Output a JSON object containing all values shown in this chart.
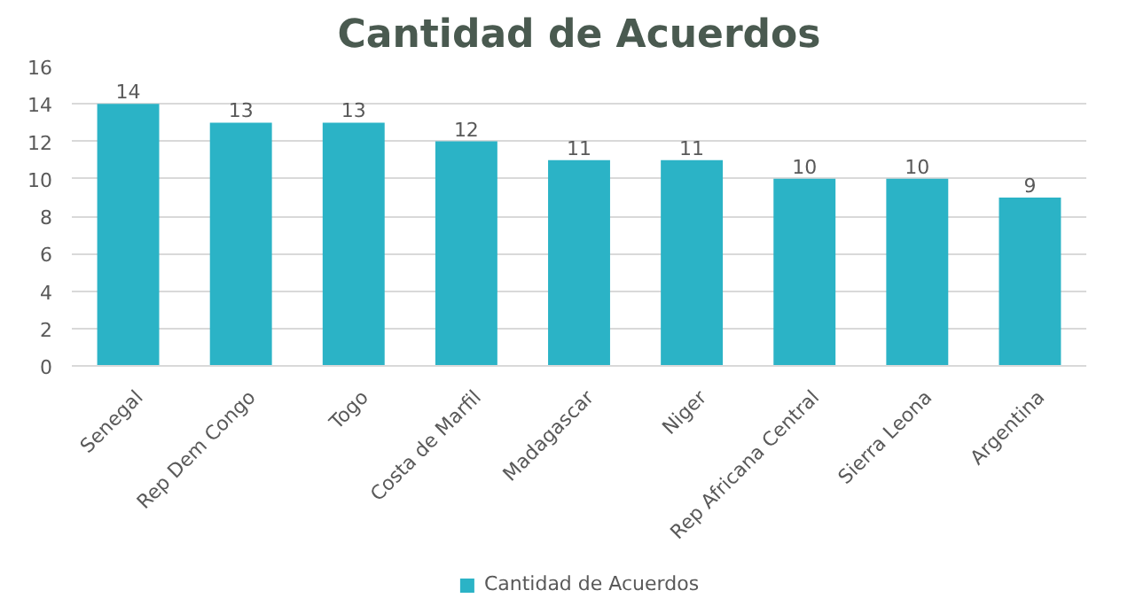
{
  "chart_data": {
    "type": "bar",
    "title": "Cantidad de Acuerdos",
    "categories": [
      "Senegal",
      "Rep Dem Congo",
      "Togo",
      "Costa de Marfil",
      "Madagascar",
      "Niger",
      "Rep Africana Central",
      "Sierra Leona",
      "Argentina"
    ],
    "series": [
      {
        "name": "Cantidad de Acuerdos",
        "color": "#2bb3c6",
        "values": [
          14,
          13,
          13,
          12,
          11,
          11,
          10,
          10,
          9
        ]
      }
    ],
    "ylim": [
      0,
      16
    ],
    "yticks": [
      0,
      2,
      4,
      6,
      8,
      10,
      12,
      14,
      16
    ],
    "grid": "y",
    "legend": "bottom",
    "data_labels": true
  }
}
